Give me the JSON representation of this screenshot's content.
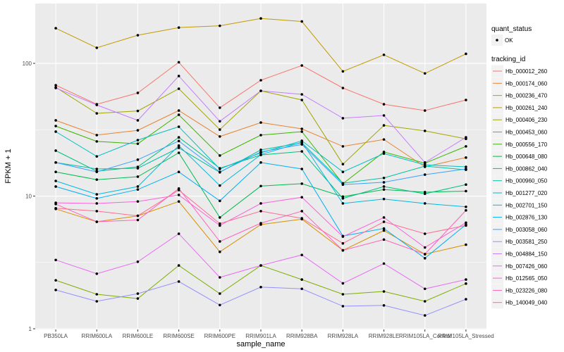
{
  "chart_data": {
    "type": "line",
    "x_label": "sample_name",
    "y_label": "FPKM + 1",
    "log_scale": true,
    "grid": true,
    "ylim": [
      0.988,
      282.5
    ],
    "yticks": [
      1,
      10,
      100
    ],
    "categories": [
      "PB350LA",
      "RRIM600LA",
      "RRIM600LE",
      "RRIM600SE",
      "RRIM600PE",
      "RRIM901LA",
      "RRIM928BA",
      "RRIM928LA",
      "RRIM928LE",
      "RRIM105LA_Control",
      "RRIM105LA_Stressed"
    ],
    "points_legend": {
      "title": "quant_status",
      "labels": [
        "OK"
      ]
    },
    "legend_title": "tracking_id",
    "series": [
      {
        "name": "Hb_000012_260",
        "color": "#F8766D",
        "values": [
          68.5,
          49.2,
          59.9,
          102,
          46.3,
          74.6,
          96.4,
          65.2,
          49.2,
          44.1,
          53
        ]
      },
      {
        "name": "Hb_000174_060",
        "color": "#EA8331",
        "values": [
          37.2,
          28.8,
          31.3,
          44.1,
          28.1,
          35.8,
          32.1,
          23.7,
          26.7,
          16.6,
          19.5
        ]
      },
      {
        "name": "Hb_000236_470",
        "color": "#D89000",
        "values": [
          8,
          6.4,
          7.1,
          9.1,
          3.8,
          6.1,
          6.7,
          3.9,
          5.5,
          3.65,
          4.3
        ]
      },
      {
        "name": "Hb_000261_240",
        "color": "#C09B00",
        "values": [
          184,
          131,
          163,
          186,
          192,
          218,
          207,
          87,
          116,
          84,
          118
        ]
      },
      {
        "name": "Hb_000406_230",
        "color": "#A3A500",
        "values": [
          66,
          42,
          43.8,
          64.4,
          31.7,
          62.1,
          53,
          17.4,
          34.1,
          31,
          27
        ]
      },
      {
        "name": "Hb_000453_060",
        "color": "#7CAE00",
        "values": [
          2.32,
          1.82,
          1.69,
          3,
          1.84,
          3,
          2.35,
          1.82,
          1.91,
          1.61,
          2.19
        ]
      },
      {
        "name": "Hb_000556_170",
        "color": "#39B600",
        "values": [
          33.7,
          25.8,
          24.8,
          41,
          20.2,
          28.8,
          30.6,
          12.4,
          21.5,
          17.7,
          23.7
        ]
      },
      {
        "name": "Hb_000648_080",
        "color": "#00BB4E",
        "values": [
          15.2,
          13.3,
          14,
          21.2,
          6.9,
          11.9,
          12.4,
          9.9,
          11.2,
          10.7,
          10.9
        ]
      },
      {
        "name": "Hb_000862_040",
        "color": "#00BF7D",
        "values": [
          22,
          15.4,
          16.6,
          27.7,
          16.2,
          20.4,
          21.7,
          9.6,
          11.8,
          10.4,
          12.2
        ]
      },
      {
        "name": "Hb_000960_050",
        "color": "#00C1A3",
        "values": [
          17.9,
          16,
          16.2,
          23.1,
          15.1,
          22.3,
          25.2,
          12.5,
          13.7,
          16.8,
          15.8
        ]
      },
      {
        "name": "Hb_001277_020",
        "color": "#00BFC4",
        "values": [
          30.6,
          19.9,
          26.4,
          33.3,
          16,
          21.2,
          26.1,
          15.2,
          20.9,
          17.2,
          16.6
        ]
      },
      {
        "name": "Hb_002701_150",
        "color": "#00BAE0",
        "values": [
          13,
          10.3,
          11.8,
          24,
          12,
          20.5,
          25.5,
          8.8,
          9.5,
          8.8,
          8.3
        ]
      },
      {
        "name": "Hb_002876_130",
        "color": "#00B0F6",
        "values": [
          11.8,
          9.6,
          11.2,
          15.2,
          9.2,
          17.9,
          16,
          5,
          5.7,
          3.4,
          6.1
        ]
      },
      {
        "name": "Hb_003058_060",
        "color": "#35A2FF",
        "values": [
          17.9,
          15.2,
          18.8,
          26,
          15.2,
          21.5,
          24.5,
          12.2,
          12.7,
          14.5,
          16
        ]
      },
      {
        "name": "Hb_003581_250",
        "color": "#9590FF",
        "values": [
          1.96,
          1.61,
          1.84,
          2.27,
          1.51,
          2.06,
          2,
          1.48,
          1.5,
          1.26,
          1.67
        ]
      },
      {
        "name": "Hb_004884_150",
        "color": "#C77CFF",
        "values": [
          65.2,
          48.6,
          37.2,
          80.3,
          36.6,
          62.1,
          58.4,
          38.6,
          40.5,
          17.9,
          27.7
        ]
      },
      {
        "name": "Hb_007426_060",
        "color": "#E76BF3",
        "values": [
          3.3,
          2.6,
          3.2,
          5.2,
          2.44,
          3,
          3.6,
          2.2,
          3.1,
          2,
          2.35
        ]
      },
      {
        "name": "Hb_012565_050",
        "color": "#FA62DB",
        "values": [
          8.9,
          8.8,
          9.1,
          10.2,
          6,
          8.8,
          9.8,
          4.95,
          6.9,
          4.1,
          6.3
        ]
      },
      {
        "name": "Hb_023226_080",
        "color": "#FF62BC",
        "values": [
          8.7,
          6.4,
          6.6,
          11.4,
          4.55,
          6.25,
          7.7,
          3.9,
          4.7,
          3.65,
          7.8
        ]
      },
      {
        "name": "Hb_140049_040",
        "color": "#FF6C91",
        "values": [
          8.1,
          7.7,
          7.1,
          11.1,
          6.2,
          7.7,
          6.8,
          4.4,
          6.4,
          5.2,
          6
        ]
      }
    ]
  }
}
